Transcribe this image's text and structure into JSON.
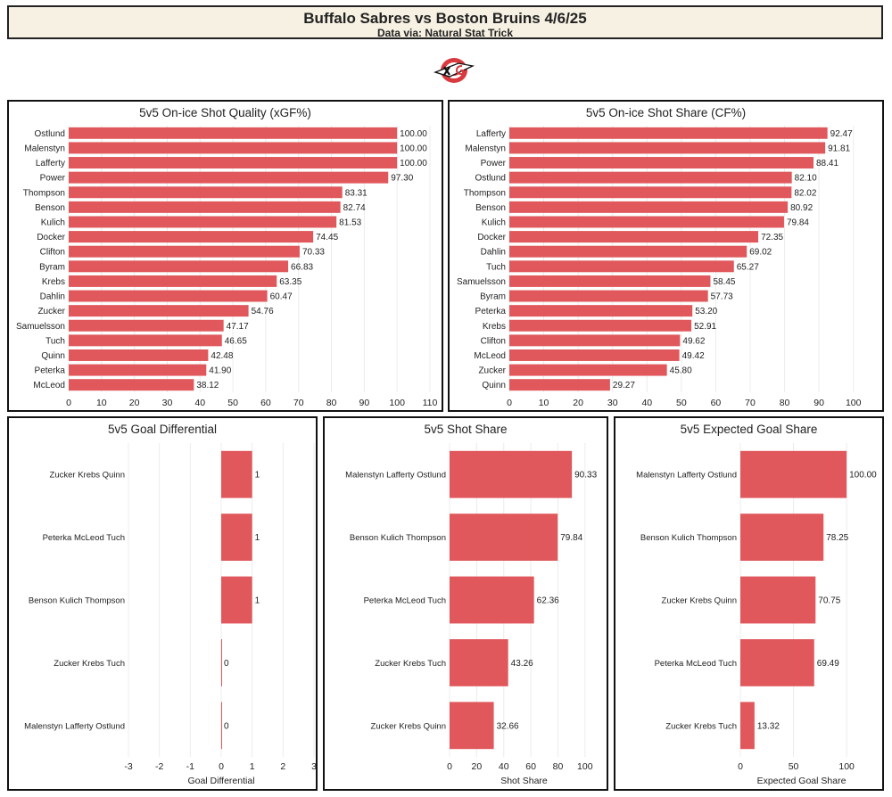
{
  "header": {
    "title": "Buffalo Sabres vs Boston Bruins 4/6/25",
    "subtitle": "Data via: Natural Stat Trick"
  },
  "logo": {
    "icon": "xg-logo-icon"
  },
  "colors": {
    "bar": "#e0585c",
    "grid": "#ececec",
    "header_bg": "#f7f1e3"
  },
  "chart_data": [
    {
      "id": "xgf",
      "type": "bar",
      "orientation": "horizontal",
      "title": "5v5 On-ice Shot Quality (xGF%)",
      "xlabel": "",
      "categories": [
        "Ostlund",
        "Malenstyn",
        "Lafferty",
        "Power",
        "Thompson",
        "Benson",
        "Kulich",
        "Docker",
        "Clifton",
        "Byram",
        "Krebs",
        "Dahlin",
        "Zucker",
        "Samuelsson",
        "Tuch",
        "Quinn",
        "Peterka",
        "McLeod"
      ],
      "values": [
        100.0,
        100.0,
        100.0,
        97.3,
        83.31,
        82.74,
        81.53,
        74.45,
        70.33,
        66.83,
        63.35,
        60.47,
        54.76,
        47.17,
        46.65,
        42.48,
        41.9,
        38.12
      ],
      "value_labels": [
        "100.00",
        "100.00",
        "100.00",
        "97.30",
        "83.31",
        "82.74",
        "81.53",
        "74.45",
        "70.33",
        "66.83",
        "63.35",
        "60.47",
        "54.76",
        "47.17",
        "46.65",
        "42.48",
        "41.90",
        "38.12"
      ],
      "xlim": [
        0,
        110
      ],
      "ticks": [
        0,
        10,
        20,
        30,
        40,
        50,
        60,
        70,
        80,
        90,
        100,
        110
      ]
    },
    {
      "id": "cf",
      "type": "bar",
      "orientation": "horizontal",
      "title": "5v5 On-ice Shot Share (CF%)",
      "xlabel": "",
      "categories": [
        "Lafferty",
        "Malenstyn",
        "Power",
        "Ostlund",
        "Thompson",
        "Benson",
        "Kulich",
        "Docker",
        "Dahlin",
        "Tuch",
        "Samuelsson",
        "Byram",
        "Peterka",
        "Krebs",
        "Clifton",
        "McLeod",
        "Zucker",
        "Quinn"
      ],
      "values": [
        92.47,
        91.81,
        88.41,
        82.1,
        82.02,
        80.92,
        79.84,
        72.35,
        69.02,
        65.27,
        58.45,
        57.73,
        53.2,
        52.91,
        49.62,
        49.42,
        45.8,
        29.27
      ],
      "value_labels": [
        "92.47",
        "91.81",
        "88.41",
        "82.10",
        "82.02",
        "80.92",
        "79.84",
        "72.35",
        "69.02",
        "65.27",
        "58.45",
        "57.73",
        "53.20",
        "52.91",
        "49.62",
        "49.42",
        "45.80",
        "29.27"
      ],
      "xlim": [
        0,
        105
      ],
      "ticks": [
        0,
        10,
        20,
        30,
        40,
        50,
        60,
        70,
        80,
        90,
        100
      ]
    },
    {
      "id": "gd",
      "type": "bar",
      "orientation": "horizontal",
      "title": "5v5 Goal Differential",
      "xlabel": "Goal Differential",
      "categories": [
        "Zucker Krebs Quinn",
        "Peterka McLeod Tuch",
        "Benson Kulich Thompson",
        "Zucker Krebs Tuch",
        "Malenstyn Lafferty Ostlund"
      ],
      "values": [
        1,
        1,
        1,
        0,
        0
      ],
      "value_labels": [
        "1",
        "1",
        "1",
        "0",
        "0"
      ],
      "xlim": [
        -3,
        3
      ],
      "ticks": [
        -3,
        -2,
        -1,
        0,
        1,
        2,
        3
      ]
    },
    {
      "id": "ss",
      "type": "bar",
      "orientation": "horizontal",
      "title": "5v5 Shot Share",
      "xlabel": "Shot Share",
      "categories": [
        "Malenstyn Lafferty Ostlund",
        "Benson Kulich Thompson",
        "Peterka McLeod Tuch",
        "Zucker Krebs Tuch",
        "Zucker Krebs Quinn"
      ],
      "values": [
        90.33,
        79.84,
        62.36,
        43.26,
        32.66
      ],
      "value_labels": [
        "90.33",
        "79.84",
        "62.36",
        "43.26",
        "32.66"
      ],
      "xlim": [
        0,
        110
      ],
      "ticks": [
        0,
        20,
        40,
        60,
        80,
        100
      ]
    },
    {
      "id": "xgs",
      "type": "bar",
      "orientation": "horizontal",
      "title": "5v5 Expected Goal Share",
      "xlabel": "Expected Goal Share",
      "categories": [
        "Malenstyn Lafferty Ostlund",
        "Benson Kulich Thompson",
        "Zucker Krebs Quinn",
        "Peterka McLeod Tuch",
        "Zucker Krebs Tuch"
      ],
      "values": [
        100.0,
        78.25,
        70.75,
        69.49,
        13.32
      ],
      "value_labels": [
        "100.00",
        "78.25",
        "70.75",
        "69.49",
        "13.32"
      ],
      "xlim": [
        0,
        115
      ],
      "ticks": [
        0,
        50,
        100
      ]
    }
  ]
}
